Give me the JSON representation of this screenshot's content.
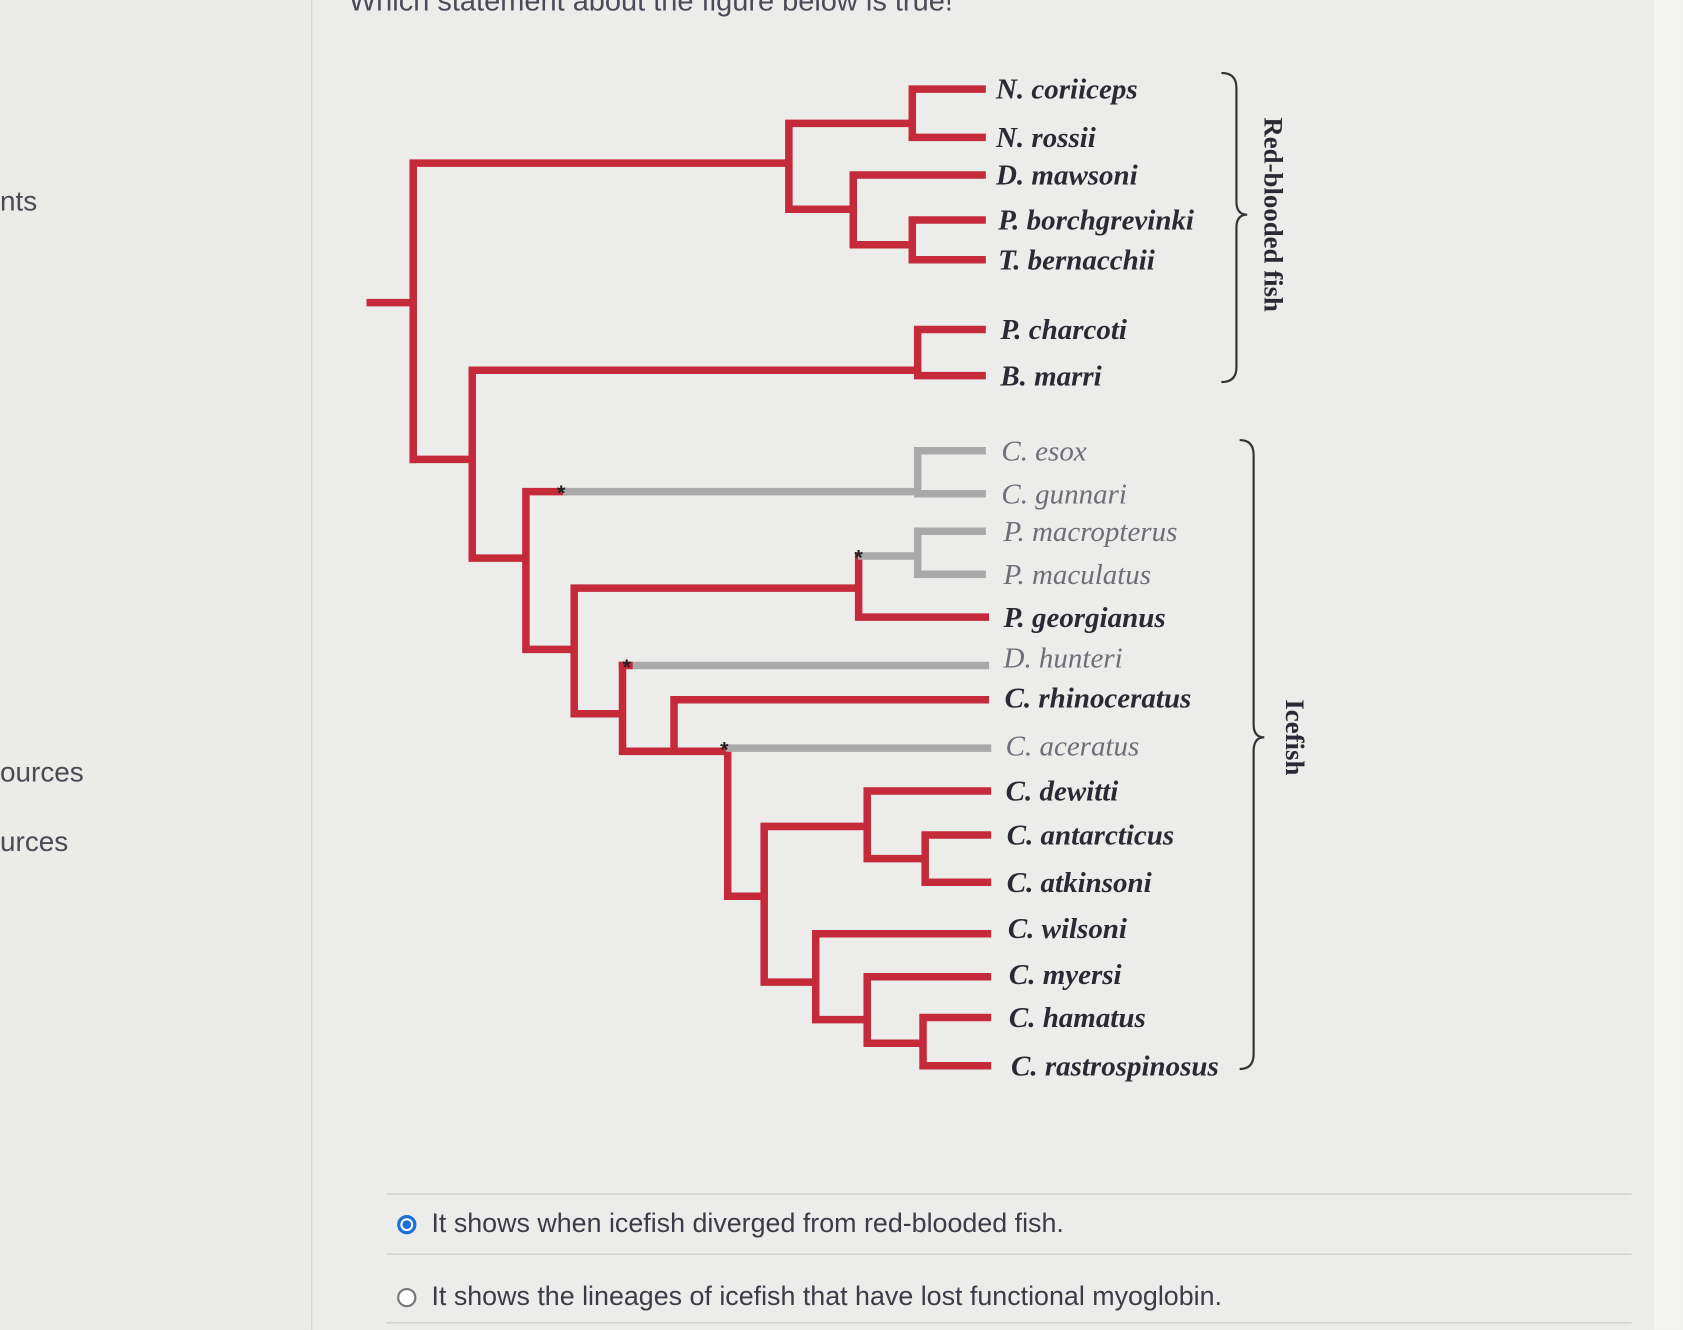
{
  "sidebar": {
    "items": [
      {
        "label": "nts"
      },
      {
        "label": "ources"
      },
      {
        "label": "urces"
      }
    ]
  },
  "question": {
    "text": "Which statement about the figure below is true!"
  },
  "figure": {
    "groups": [
      {
        "label": "Red-blooded fish"
      },
      {
        "label": "Icefish"
      }
    ],
    "leaves": [
      {
        "label": "N. coriiceps",
        "lineage": "red"
      },
      {
        "label": "N. rossii",
        "lineage": "red"
      },
      {
        "label": "D. mawsoni",
        "lineage": "red"
      },
      {
        "label": "P. borchgrevinki",
        "lineage": "red"
      },
      {
        "label": "T. bernacchii",
        "lineage": "red"
      },
      {
        "label": "P. charcoti",
        "lineage": "red"
      },
      {
        "label": "B. marri",
        "lineage": "red"
      },
      {
        "label": "C. esox",
        "lineage": "grey"
      },
      {
        "label": "C. gunnari",
        "lineage": "grey"
      },
      {
        "label": "P. macropterus",
        "lineage": "grey"
      },
      {
        "label": "P. maculatus",
        "lineage": "grey"
      },
      {
        "label": "P. georgianus",
        "lineage": "red"
      },
      {
        "label": "D. hunteri",
        "lineage": "grey"
      },
      {
        "label": "C. rhinoceratus",
        "lineage": "red"
      },
      {
        "label": "C. aceratus",
        "lineage": "grey"
      },
      {
        "label": "C. dewitti",
        "lineage": "red"
      },
      {
        "label": "C. antarcticus",
        "lineage": "red"
      },
      {
        "label": "C. atkinsoni",
        "lineage": "red"
      },
      {
        "label": "C. wilsoni",
        "lineage": "red"
      },
      {
        "label": "C. myersi",
        "lineage": "red"
      },
      {
        "label": "C. hamatus",
        "lineage": "red"
      },
      {
        "label": "C. rastrospinosus",
        "lineage": "red"
      }
    ],
    "marker": "*",
    "colors": {
      "red": "#c42a3a",
      "grey": "#a9a9a9"
    }
  },
  "options": [
    {
      "label": "It shows when icefish diverged from red-blooded fish.",
      "selected": true
    },
    {
      "label": "It shows the lineages of icefish that have lost functional myoglobin.",
      "selected": false
    }
  ]
}
